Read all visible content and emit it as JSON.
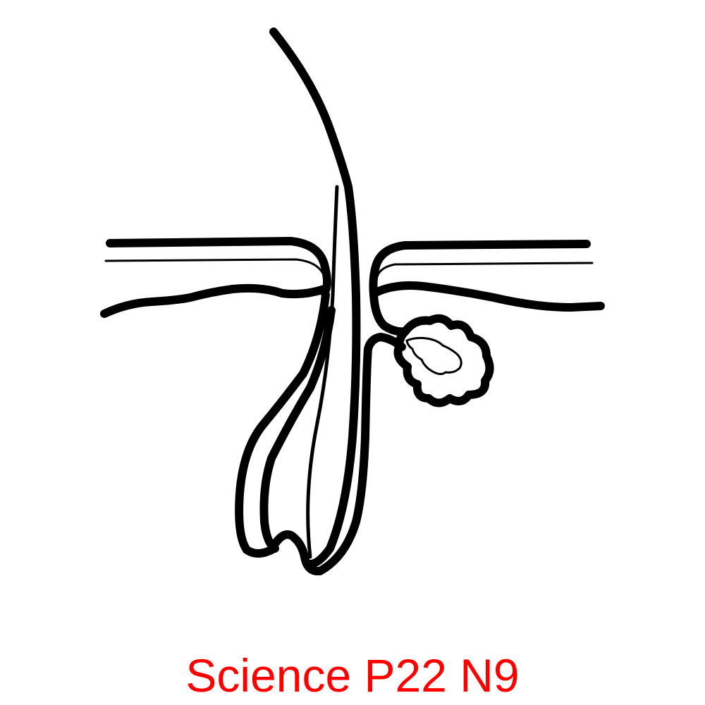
{
  "caption": {
    "text": "Science P22 N9",
    "color": "#ff0000"
  },
  "diagram": {
    "stroke_color": "#000000",
    "background": "#ffffff"
  }
}
